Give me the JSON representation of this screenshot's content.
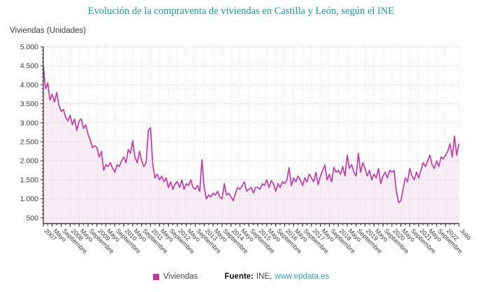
{
  "title": {
    "text": "Evolución de la compraventa de viviendas en Castilla y León, según el INE",
    "color": "#1d989c"
  },
  "y_axis_title": "Viviendas (Unidades)",
  "legend": {
    "label": "Viviendas",
    "marker_color": "#c0399f"
  },
  "footer": {
    "source_label": "Fuente:",
    "source_value": "INE,",
    "link_text": "www.epdata.es",
    "link_color": "#3b9fc0"
  },
  "chart_data": {
    "type": "area",
    "title": "Evolución de la compraventa de viviendas en Castilla y León, según el INE",
    "ylabel": "Viviendas (Unidades)",
    "xlabel": "",
    "x_start": "Enero 2007",
    "x_end": "Julio 2022",
    "x_frequency": "monthly",
    "grid": "dotted",
    "legend_position": "bottom",
    "line_color": "#bf3da7",
    "fill_color": "#f8ecf5",
    "ylim": [
      350,
      5000
    ],
    "y_ticks": [
      500,
      1000,
      1500,
      2000,
      2500,
      3000,
      3500,
      4000,
      4500,
      5000
    ],
    "y_tick_labels": [
      "500",
      "1.000",
      "1.500",
      "2.000",
      "2.500",
      "3.000",
      "3.500",
      "4.000",
      "4.500",
      "5.000"
    ],
    "x_tick_labels": [
      "2007",
      "Mayo",
      "Septiembre",
      "2008",
      "Mayo",
      "Septiembre",
      "2009",
      "Mayo",
      "Septiembre",
      "2010",
      "Mayo",
      "Septiembre",
      "2011",
      "Mayo",
      "Septiembre",
      "2012",
      "Mayo",
      "Septiembre",
      "2013",
      "Mayo",
      "Septiembre",
      "2014",
      "Mayo",
      "Septiembre",
      "2015",
      "Mayo",
      "Septiembre",
      "2016",
      "Mayo",
      "Septiembre",
      "2017",
      "Mayo",
      "Septiembre",
      "2018",
      "Mayo",
      "Septiembre",
      "2019",
      "Mayo",
      "Septiembre",
      "2020",
      "Mayo",
      "Septiembre",
      "2021",
      "Mayo",
      "Septiembre",
      "2022",
      "Julio"
    ],
    "x_tick_interval_months": 4,
    "series": [
      {
        "name": "Viviendas",
        "values": [
          4500,
          3900,
          4050,
          3600,
          3750,
          3550,
          3800,
          3450,
          3300,
          3350,
          3150,
          3050,
          3200,
          2950,
          3100,
          2800,
          3050,
          3100,
          2850,
          2950,
          2700,
          2550,
          2350,
          2400,
          2350,
          2100,
          2250,
          1750,
          1900,
          1850,
          1950,
          1800,
          1700,
          1900,
          1850,
          2000,
          2100,
          1950,
          2300,
          2200,
          2530,
          2100,
          1950,
          2250,
          2000,
          1850,
          1950,
          2800,
          2870,
          1900,
          1550,
          1650,
          1500,
          1600,
          1450,
          1550,
          1300,
          1450,
          1250,
          1400,
          1450,
          1300,
          1500,
          1250,
          1400,
          1350,
          1500,
          1300,
          1250,
          1350,
          1200,
          2030,
          1300,
          1000,
          1100,
          1050,
          1150,
          1100,
          1200,
          1050,
          1000,
          1400,
          1100,
          1150,
          1050,
          950,
          1150,
          1300,
          1250,
          1350,
          1450,
          1200,
          1250,
          1300,
          1150,
          1300,
          1300,
          1250,
          1400,
          1350,
          1500,
          1300,
          1480,
          1400,
          1200,
          1400,
          1300,
          1450,
          1400,
          1500,
          1820,
          1350,
          1550,
          1450,
          1600,
          1500,
          1350,
          1550,
          1450,
          1650,
          1550,
          1450,
          1700,
          1370,
          1600,
          1750,
          1890,
          1500,
          1650,
          1450,
          1830,
          1700,
          1750,
          1650,
          1850,
          1600,
          2150,
          1800,
          1900,
          1700,
          1600,
          2200,
          1700,
          1950,
          1800,
          1600,
          1750,
          1500,
          1650,
          1550,
          1800,
          1400,
          1600,
          1700,
          1550,
          1750,
          1700,
          1750,
          1200,
          900,
          950,
          1250,
          1550,
          1450,
          1800,
          1600,
          1500,
          1700,
          1550,
          1750,
          1950,
          1850,
          2000,
          2150,
          1900,
          1800,
          2000,
          1850,
          2100,
          2050,
          2150,
          2250,
          2450,
          2100,
          2650,
          2150,
          2450
        ]
      }
    ]
  }
}
